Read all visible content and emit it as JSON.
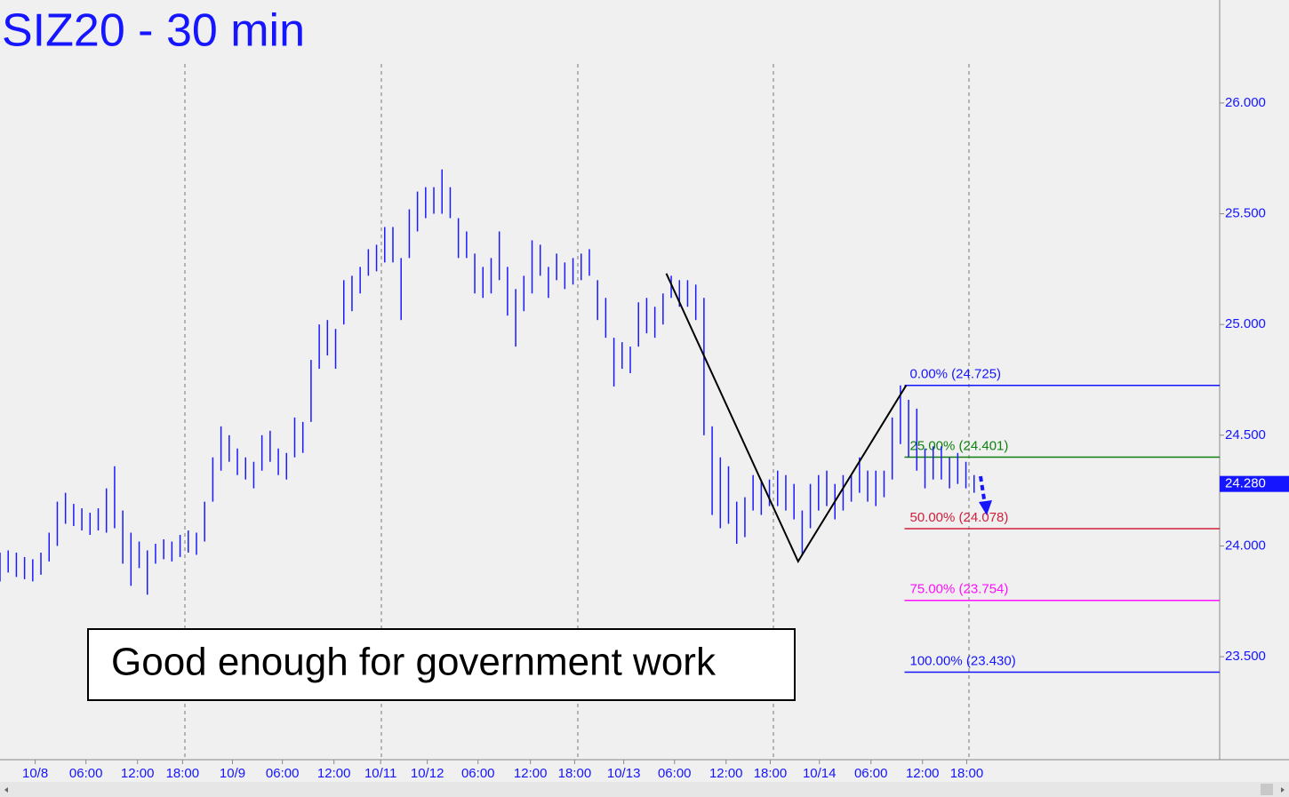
{
  "chart_data": {
    "type": "ohlc",
    "title": "SIZ20 - 30 min",
    "annotation": "Good enough for government work",
    "color": "#1a1aff",
    "xlim": [
      0,
      149
    ],
    "ylim": [
      23.035,
      26.465
    ],
    "xticks": [
      {
        "value": 4.3,
        "label": "10/8"
      },
      {
        "value": 10.5,
        "label": "06:00"
      },
      {
        "value": 16.8,
        "label": "12:00"
      },
      {
        "value": 22.3,
        "label": "18:00"
      },
      {
        "value": 28.4,
        "label": "10/9"
      },
      {
        "value": 34.5,
        "label": "06:00"
      },
      {
        "value": 40.8,
        "label": "12:00"
      },
      {
        "value": 46.5,
        "label": "10/11"
      },
      {
        "value": 52.2,
        "label": "10/12"
      },
      {
        "value": 58.4,
        "label": "06:00"
      },
      {
        "value": 64.8,
        "label": "12:00"
      },
      {
        "value": 70.2,
        "label": "18:00"
      },
      {
        "value": 76.2,
        "label": "10/13"
      },
      {
        "value": 82.4,
        "label": "06:00"
      },
      {
        "value": 88.7,
        "label": "12:00"
      },
      {
        "value": 94.1,
        "label": "18:00"
      },
      {
        "value": 100.1,
        "label": "10/14"
      },
      {
        "value": 106.4,
        "label": "06:00"
      },
      {
        "value": 112.7,
        "label": "12:00"
      },
      {
        "value": 118.1,
        "label": "18:00"
      }
    ],
    "yticks": [
      {
        "value": 26,
        "label": "26.000"
      },
      {
        "value": 25.5,
        "label": "25.500"
      },
      {
        "value": 25,
        "label": "25.000"
      },
      {
        "value": 24.5,
        "label": "24.500"
      },
      {
        "value": 24,
        "label": "24.000"
      },
      {
        "value": 23.5,
        "label": "23.500"
      }
    ],
    "last_price": {
      "value": 24.28,
      "label": "24.280"
    },
    "x": [
      0,
      1,
      2,
      3,
      4,
      5,
      6,
      7,
      8,
      9,
      10,
      11,
      12,
      13,
      14,
      15,
      16,
      17,
      18,
      19,
      20,
      21,
      22,
      23,
      24,
      25,
      26,
      27,
      28,
      29,
      30,
      31,
      32,
      33,
      34,
      35,
      36,
      37,
      38,
      39,
      40,
      41,
      42,
      43,
      44,
      45,
      46,
      47,
      48,
      49,
      50,
      51,
      52,
      53,
      54,
      55,
      56,
      57,
      58,
      59,
      60,
      61,
      62,
      63,
      64,
      65,
      66,
      67,
      68,
      69,
      70,
      71,
      72,
      73,
      74,
      75,
      76,
      77,
      78,
      79,
      80,
      81,
      82,
      83,
      84,
      85,
      86,
      87,
      88,
      89,
      90,
      91,
      92,
      93,
      94,
      95,
      96,
      97,
      98,
      99,
      100,
      101,
      102,
      103,
      104,
      105,
      106,
      107,
      108,
      109,
      110,
      111,
      112,
      113,
      114,
      115,
      116,
      117,
      118,
      119
    ],
    "highs": [
      23.97,
      23.98,
      23.97,
      23.95,
      23.94,
      23.97,
      24.06,
      24.2,
      24.24,
      24.19,
      24.17,
      24.15,
      24.17,
      24.26,
      24.36,
      24.16,
      24.06,
      24.02,
      23.98,
      24.01,
      24.03,
      24.02,
      24.05,
      24.07,
      24.06,
      24.2,
      24.4,
      24.54,
      24.5,
      24.44,
      24.4,
      24.38,
      24.5,
      24.52,
      24.44,
      24.42,
      24.58,
      24.56,
      24.84,
      25.0,
      25.02,
      24.98,
      25.2,
      25.22,
      25.26,
      25.34,
      25.36,
      25.44,
      25.44,
      25.3,
      25.52,
      25.6,
      25.62,
      25.62,
      25.7,
      25.62,
      25.48,
      25.42,
      25.32,
      25.26,
      25.3,
      25.42,
      25.26,
      25.16,
      25.22,
      25.38,
      25.36,
      25.26,
      25.32,
      25.28,
      25.3,
      25.32,
      25.34,
      25.2,
      25.12,
      24.94,
      24.92,
      24.9,
      25.1,
      25.12,
      25.08,
      25.14,
      25.22,
      25.2,
      25.2,
      25.18,
      25.12,
      24.54,
      24.4,
      24.36,
      24.2,
      24.22,
      24.32,
      24.3,
      24.3,
      24.34,
      24.32,
      24.28,
      24.16,
      24.28,
      24.32,
      24.34,
      24.28,
      24.32,
      24.32,
      24.4,
      24.34,
      24.34,
      24.34,
      24.58,
      24.725,
      24.66,
      24.62,
      24.44,
      24.45,
      24.45,
      24.4,
      24.42,
      24.38,
      24.32
    ],
    "lows": [
      23.84,
      23.88,
      23.86,
      23.85,
      23.84,
      23.87,
      23.93,
      24.0,
      24.1,
      24.09,
      24.07,
      24.05,
      24.07,
      24.06,
      24.08,
      23.92,
      23.82,
      23.9,
      23.78,
      23.92,
      23.94,
      23.93,
      23.95,
      23.97,
      23.96,
      24.02,
      24.2,
      24.34,
      24.38,
      24.32,
      24.3,
      24.26,
      24.34,
      24.38,
      24.32,
      24.3,
      24.4,
      24.42,
      24.56,
      24.8,
      24.86,
      24.8,
      25.0,
      25.06,
      25.14,
      25.22,
      25.24,
      25.28,
      25.28,
      25.02,
      25.3,
      25.42,
      25.48,
      25.5,
      25.5,
      25.48,
      25.3,
      25.3,
      25.14,
      25.12,
      25.14,
      25.2,
      25.04,
      24.9,
      25.06,
      25.14,
      25.22,
      25.12,
      25.2,
      25.16,
      25.18,
      25.2,
      25.22,
      25.02,
      24.94,
      24.72,
      24.8,
      24.78,
      24.9,
      24.96,
      24.94,
      25.0,
      25.12,
      25.08,
      25.08,
      25.02,
      24.5,
      24.14,
      24.08,
      24.1,
      24.01,
      24.04,
      24.16,
      24.14,
      24.18,
      24.18,
      24.16,
      24.12,
      23.96,
      24.08,
      24.16,
      24.18,
      24.12,
      24.16,
      24.2,
      24.24,
      24.2,
      24.18,
      24.22,
      24.3,
      24.46,
      24.4,
      24.34,
      24.26,
      24.3,
      24.3,
      24.26,
      24.28,
      24.26,
      24.24
    ],
    "pattern": {
      "color": "#000000",
      "x": [
        81.4,
        97.5,
        110.7
      ],
      "y": [
        25.23,
        23.93,
        24.725
      ]
    },
    "levels": [
      {
        "label": "0.00% (24.725)",
        "value": 24.725,
        "color": "#1515ff"
      },
      {
        "label": "25.00% (24.401)",
        "value": 24.401,
        "color": "#108010"
      },
      {
        "label": "50.00% (24.078)",
        "value": 24.078,
        "color": "#d0203c"
      },
      {
        "label": "75.00% (23.754)",
        "value": 23.754,
        "color": "#ff10ff"
      },
      {
        "label": "100.00% (23.430)",
        "value": 23.43,
        "color": "#1515ff"
      }
    ],
    "levels_start": 110.5
  }
}
